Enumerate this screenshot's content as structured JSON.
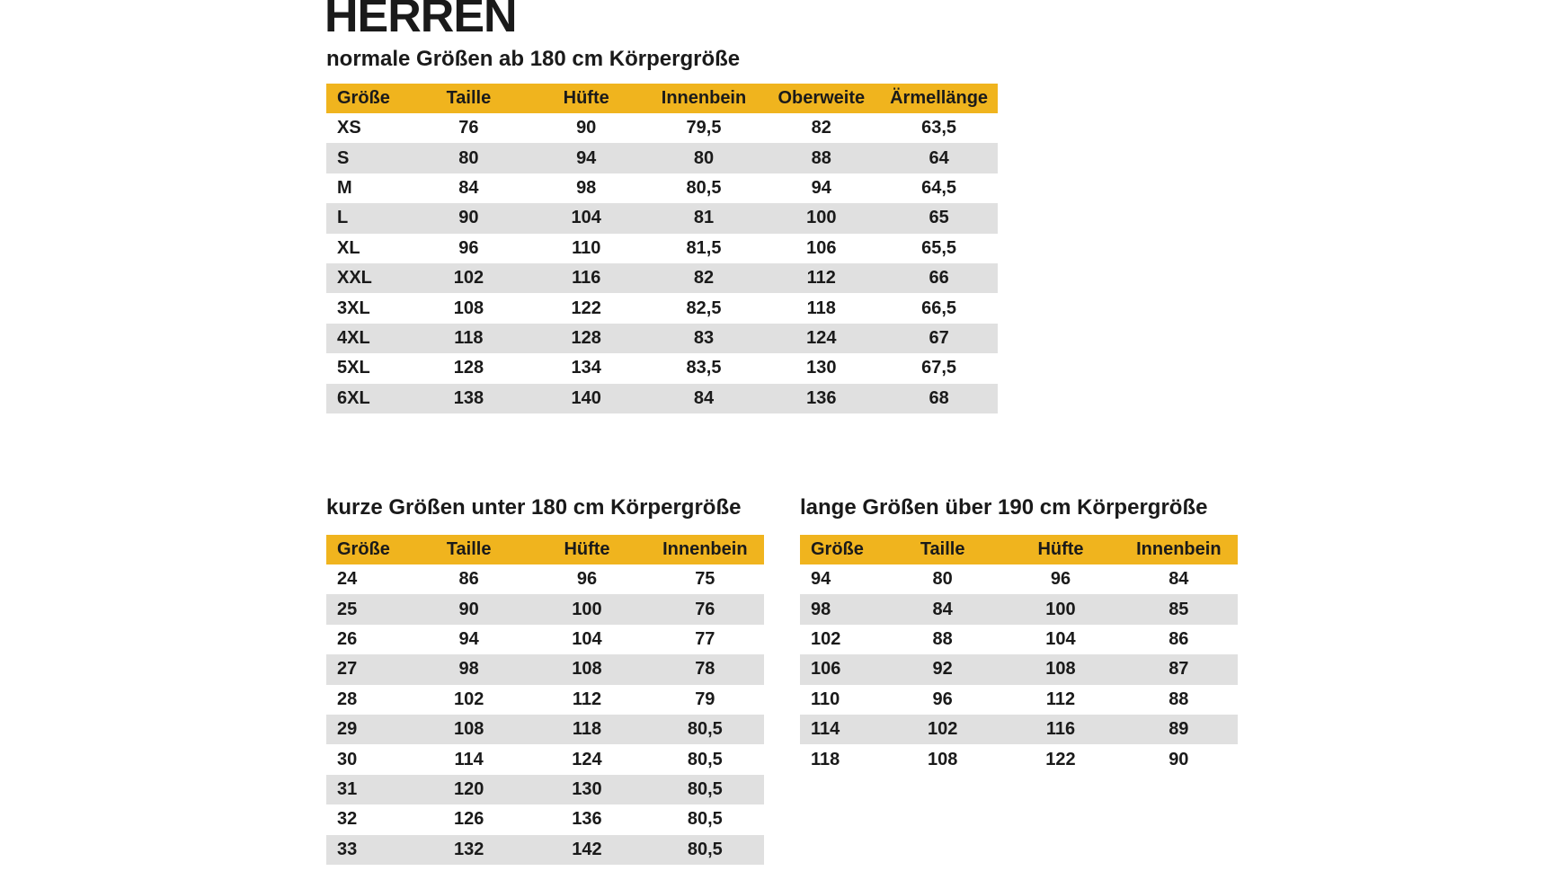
{
  "page": {
    "title": "HERREN",
    "background": "#ffffff",
    "accent_yellow": "#f0b41e",
    "stripe_gray": "#e0e0e0",
    "text_color": "#1a1a1a"
  },
  "tables": {
    "normal": {
      "subtitle": "normale Größen ab 180 cm Körpergröße",
      "columns": [
        "Größe",
        "Taille",
        "Hüfte",
        "Innenbein",
        "Oberweite",
        "Ärmellänge"
      ],
      "rows": [
        [
          "XS",
          "76",
          "90",
          "79,5",
          "82",
          "63,5"
        ],
        [
          "S",
          "80",
          "94",
          "80",
          "88",
          "64"
        ],
        [
          "M",
          "84",
          "98",
          "80,5",
          "94",
          "64,5"
        ],
        [
          "L",
          "90",
          "104",
          "81",
          "100",
          "65"
        ],
        [
          "XL",
          "96",
          "110",
          "81,5",
          "106",
          "65,5"
        ],
        [
          "XXL",
          "102",
          "116",
          "82",
          "112",
          "66"
        ],
        [
          "3XL",
          "108",
          "122",
          "82,5",
          "118",
          "66,5"
        ],
        [
          "4XL",
          "118",
          "128",
          "83",
          "124",
          "67"
        ],
        [
          "5XL",
          "128",
          "134",
          "83,5",
          "130",
          "67,5"
        ],
        [
          "6XL",
          "138",
          "140",
          "84",
          "136",
          "68"
        ]
      ]
    },
    "short": {
      "subtitle": "kurze Größen unter 180 cm Körpergröße",
      "columns": [
        "Größe",
        "Taille",
        "Hüfte",
        "Innenbein"
      ],
      "rows": [
        [
          "24",
          "86",
          "96",
          "75"
        ],
        [
          "25",
          "90",
          "100",
          "76"
        ],
        [
          "26",
          "94",
          "104",
          "77"
        ],
        [
          "27",
          "98",
          "108",
          "78"
        ],
        [
          "28",
          "102",
          "112",
          "79"
        ],
        [
          "29",
          "108",
          "118",
          "80,5"
        ],
        [
          "30",
          "114",
          "124",
          "80,5"
        ],
        [
          "31",
          "120",
          "130",
          "80,5"
        ],
        [
          "32",
          "126",
          "136",
          "80,5"
        ],
        [
          "33",
          "132",
          "142",
          "80,5"
        ]
      ]
    },
    "long": {
      "subtitle": "lange Größen über 190 cm Körpergröße",
      "columns": [
        "Größe",
        "Taille",
        "Hüfte",
        "Innenbein"
      ],
      "rows": [
        [
          "94",
          "80",
          "96",
          "84"
        ],
        [
          "98",
          "84",
          "100",
          "85"
        ],
        [
          "102",
          "88",
          "104",
          "86"
        ],
        [
          "106",
          "92",
          "108",
          "87"
        ],
        [
          "110",
          "96",
          "112",
          "88"
        ],
        [
          "114",
          "102",
          "116",
          "89"
        ],
        [
          "118",
          "108",
          "122",
          "90"
        ]
      ]
    }
  }
}
